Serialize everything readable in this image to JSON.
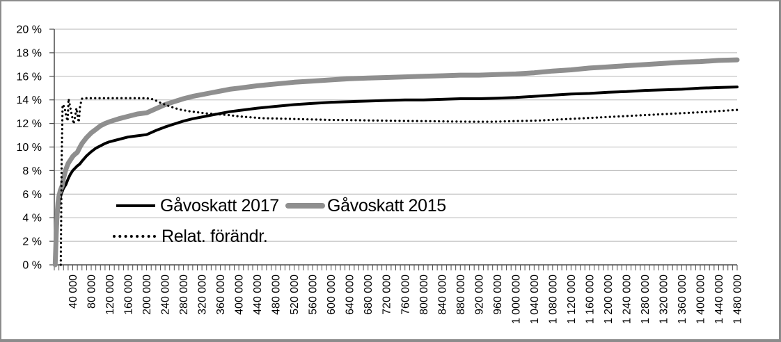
{
  "colors": {
    "background": "#ffffff",
    "frame_border": "#8c8c8c",
    "gridline": "#b5b5b5",
    "axis": "#4a4a4a",
    "tick": "#4d4d4d",
    "series_2017": "#000000",
    "series_2015": "#8f8f8f",
    "series_rel": "#000000"
  },
  "chart_data": {
    "type": "line",
    "title": "",
    "grid": "horizontal",
    "legend_position": "inside-plot-left",
    "x_axis": {
      "min": 0,
      "max": 1480000,
      "label_step": 40000,
      "minor_tick_step": 10000,
      "labels": [
        "40 000",
        "80 000",
        "120 000",
        "160 000",
        "200 000",
        "240 000",
        "280 000",
        "320 000",
        "360 000",
        "400 000",
        "440 000",
        "480 000",
        "520 000",
        "560 000",
        "600 000",
        "640 000",
        "680 000",
        "720 000",
        "760 000",
        "800 000",
        "840 000",
        "880 000",
        "920 000",
        "960 000",
        "1 000 000",
        "1 040 000",
        "1 080 000",
        "1 120 000",
        "1 160 000",
        "1 200 000",
        "1 240 000",
        "1 280 000",
        "1 320 000",
        "1 360 000",
        "1 400 000",
        "1 440 000",
        "1 480 000"
      ]
    },
    "y_axis": {
      "min": 0,
      "max": 20,
      "step": 2,
      "unit": "%",
      "labels": [
        "0 %",
        "2 %",
        "4 %",
        "6 %",
        "8 %",
        "10 %",
        "12 %",
        "14 %",
        "16 %",
        "18 %",
        "20 %"
      ]
    },
    "series": [
      {
        "name": "Gåvoskatt 2017",
        "color": "#000000",
        "style": "solid",
        "stroke_width": 4,
        "points": [
          [
            3000,
            0
          ],
          [
            5000,
            2
          ],
          [
            8000,
            4.2
          ],
          [
            10000,
            5
          ],
          [
            12000,
            5.5
          ],
          [
            15000,
            6
          ],
          [
            20000,
            6.5
          ],
          [
            25000,
            6.8
          ],
          [
            30000,
            7.3
          ],
          [
            35000,
            7.7
          ],
          [
            40000,
            8
          ],
          [
            45000,
            8.2
          ],
          [
            50000,
            8.4
          ],
          [
            55000,
            8.55
          ],
          [
            60000,
            8.8
          ],
          [
            70000,
            9.25
          ],
          [
            80000,
            9.6
          ],
          [
            90000,
            9.9
          ],
          [
            100000,
            10.1
          ],
          [
            110000,
            10.3
          ],
          [
            120000,
            10.45
          ],
          [
            140000,
            10.65
          ],
          [
            160000,
            10.85
          ],
          [
            180000,
            10.95
          ],
          [
            200000,
            11.05
          ],
          [
            220000,
            11.4
          ],
          [
            240000,
            11.7
          ],
          [
            260000,
            11.95
          ],
          [
            280000,
            12.2
          ],
          [
            300000,
            12.4
          ],
          [
            320000,
            12.55
          ],
          [
            340000,
            12.7
          ],
          [
            360000,
            12.85
          ],
          [
            380000,
            13.0
          ],
          [
            400000,
            13.1
          ],
          [
            440000,
            13.3
          ],
          [
            480000,
            13.45
          ],
          [
            520000,
            13.6
          ],
          [
            560000,
            13.7
          ],
          [
            600000,
            13.8
          ],
          [
            640000,
            13.85
          ],
          [
            680000,
            13.9
          ],
          [
            720000,
            13.95
          ],
          [
            760000,
            14.0
          ],
          [
            800000,
            14.0
          ],
          [
            840000,
            14.05
          ],
          [
            880000,
            14.1
          ],
          [
            920000,
            14.1
          ],
          [
            960000,
            14.15
          ],
          [
            1000000,
            14.2
          ],
          [
            1040000,
            14.3
          ],
          [
            1080000,
            14.4
          ],
          [
            1120000,
            14.5
          ],
          [
            1160000,
            14.55
          ],
          [
            1200000,
            14.65
          ],
          [
            1240000,
            14.7
          ],
          [
            1280000,
            14.8
          ],
          [
            1320000,
            14.85
          ],
          [
            1360000,
            14.9
          ],
          [
            1400000,
            15.0
          ],
          [
            1440000,
            15.05
          ],
          [
            1480000,
            15.1
          ]
        ]
      },
      {
        "name": "Gåvoskatt 2015",
        "color": "#8f8f8f",
        "style": "solid",
        "stroke_width": 7,
        "points": [
          [
            2000,
            0
          ],
          [
            4000,
            2.5
          ],
          [
            6000,
            4.3
          ],
          [
            8000,
            5.25
          ],
          [
            10000,
            5.8
          ],
          [
            13000,
            6.3
          ],
          [
            17000,
            6.7
          ],
          [
            20000,
            7.35
          ],
          [
            25000,
            8.1
          ],
          [
            30000,
            8.6
          ],
          [
            35000,
            8.9
          ],
          [
            40000,
            9.2
          ],
          [
            45000,
            9.4
          ],
          [
            50000,
            9.55
          ],
          [
            55000,
            9.95
          ],
          [
            60000,
            10.3
          ],
          [
            70000,
            10.8
          ],
          [
            80000,
            11.2
          ],
          [
            90000,
            11.5
          ],
          [
            100000,
            11.8
          ],
          [
            110000,
            12.0
          ],
          [
            120000,
            12.15
          ],
          [
            140000,
            12.4
          ],
          [
            160000,
            12.6
          ],
          [
            180000,
            12.8
          ],
          [
            200000,
            12.9
          ],
          [
            220000,
            13.25
          ],
          [
            240000,
            13.6
          ],
          [
            260000,
            13.85
          ],
          [
            280000,
            14.1
          ],
          [
            300000,
            14.3
          ],
          [
            320000,
            14.45
          ],
          [
            340000,
            14.6
          ],
          [
            360000,
            14.75
          ],
          [
            380000,
            14.9
          ],
          [
            400000,
            15.0
          ],
          [
            440000,
            15.2
          ],
          [
            480000,
            15.35
          ],
          [
            520000,
            15.5
          ],
          [
            560000,
            15.6
          ],
          [
            600000,
            15.7
          ],
          [
            640000,
            15.8
          ],
          [
            680000,
            15.85
          ],
          [
            720000,
            15.9
          ],
          [
            760000,
            15.95
          ],
          [
            800000,
            16.0
          ],
          [
            840000,
            16.05
          ],
          [
            880000,
            16.1
          ],
          [
            920000,
            16.1
          ],
          [
            960000,
            16.15
          ],
          [
            1000000,
            16.2
          ],
          [
            1040000,
            16.3
          ],
          [
            1080000,
            16.45
          ],
          [
            1120000,
            16.55
          ],
          [
            1160000,
            16.7
          ],
          [
            1200000,
            16.8
          ],
          [
            1240000,
            16.9
          ],
          [
            1280000,
            17.0
          ],
          [
            1320000,
            17.1
          ],
          [
            1360000,
            17.2
          ],
          [
            1400000,
            17.25
          ],
          [
            1440000,
            17.35
          ],
          [
            1480000,
            17.4
          ]
        ]
      },
      {
        "name": "Relat. förändr.",
        "color": "#000000",
        "style": "dotted",
        "stroke_width": 3.2,
        "points": [
          [
            14000,
            0
          ],
          [
            15000,
            4
          ],
          [
            16000,
            9
          ],
          [
            18000,
            13.6
          ],
          [
            22000,
            13.4
          ],
          [
            26000,
            12.6
          ],
          [
            29000,
            12.2
          ],
          [
            31000,
            14.1
          ],
          [
            34000,
            13.5
          ],
          [
            37000,
            12.9
          ],
          [
            40000,
            12.35
          ],
          [
            42000,
            11.95
          ],
          [
            45000,
            12.55
          ],
          [
            48000,
            13.3
          ],
          [
            50000,
            12.8
          ],
          [
            53000,
            12.1
          ],
          [
            56000,
            13.5
          ],
          [
            60000,
            14.1
          ],
          [
            65000,
            14.15
          ],
          [
            100000,
            14.15
          ],
          [
            150000,
            14.15
          ],
          [
            200000,
            14.15
          ],
          [
            215000,
            14.05
          ],
          [
            230000,
            13.75
          ],
          [
            250000,
            13.45
          ],
          [
            270000,
            13.2
          ],
          [
            290000,
            13.05
          ],
          [
            310000,
            12.95
          ],
          [
            330000,
            12.85
          ],
          [
            350000,
            12.8
          ],
          [
            380000,
            12.7
          ],
          [
            400000,
            12.6
          ],
          [
            450000,
            12.45
          ],
          [
            500000,
            12.4
          ],
          [
            550000,
            12.35
          ],
          [
            600000,
            12.3
          ],
          [
            650000,
            12.28
          ],
          [
            700000,
            12.25
          ],
          [
            750000,
            12.22
          ],
          [
            800000,
            12.2
          ],
          [
            850000,
            12.17
          ],
          [
            900000,
            12.15
          ],
          [
            950000,
            12.15
          ],
          [
            1000000,
            12.2
          ],
          [
            1050000,
            12.25
          ],
          [
            1100000,
            12.35
          ],
          [
            1150000,
            12.45
          ],
          [
            1200000,
            12.55
          ],
          [
            1250000,
            12.65
          ],
          [
            1300000,
            12.75
          ],
          [
            1350000,
            12.85
          ],
          [
            1400000,
            12.95
          ],
          [
            1440000,
            13.05
          ],
          [
            1480000,
            13.15
          ]
        ]
      }
    ]
  }
}
